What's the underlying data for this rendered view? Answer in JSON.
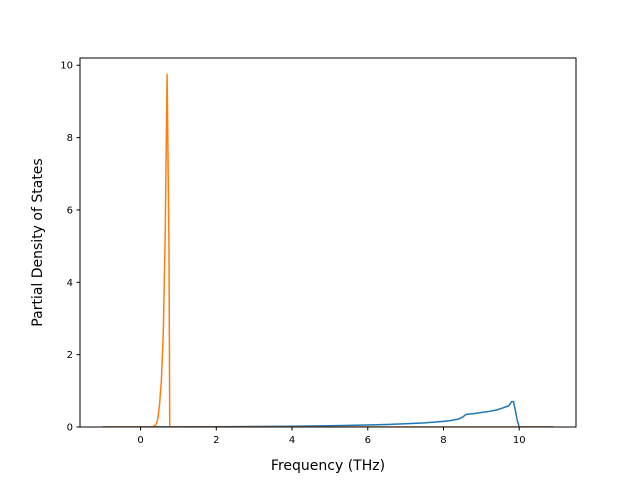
{
  "chart_data": {
    "type": "line",
    "xlabel": "Frequency (THz)",
    "ylabel": "Partial Density of States",
    "xlim": [
      -1.6,
      11.5
    ],
    "ylim": [
      0,
      10.2
    ],
    "x_ticks": [
      0,
      2,
      4,
      6,
      8,
      10
    ],
    "y_ticks": [
      0,
      2,
      4,
      6,
      8,
      10
    ],
    "x_tick_labels": [
      "0",
      "2",
      "4",
      "6",
      "8",
      "10"
    ],
    "y_tick_labels": [
      "0",
      "2",
      "4",
      "6",
      "8",
      "10"
    ],
    "grid": false,
    "series": [
      {
        "color": "#1f77b4",
        "x": [
          -1.0,
          0.0,
          1.0,
          2.0,
          3.0,
          4.0,
          5.0,
          6.0,
          6.5,
          7.0,
          7.5,
          8.0,
          8.2,
          8.4,
          8.5,
          8.6,
          8.8,
          9.0,
          9.2,
          9.4,
          9.55,
          9.65,
          9.72,
          9.8,
          9.85,
          9.9,
          9.95,
          10.0,
          10.9
        ],
        "y": [
          0.0,
          0.0,
          0.003,
          0.008,
          0.015,
          0.022,
          0.035,
          0.055,
          0.07,
          0.09,
          0.115,
          0.155,
          0.18,
          0.22,
          0.27,
          0.35,
          0.37,
          0.4,
          0.43,
          0.47,
          0.52,
          0.56,
          0.58,
          0.7,
          0.7,
          0.45,
          0.18,
          0.0,
          0.0
        ]
      },
      {
        "color": "#ff7f0e",
        "x": [
          -1.0,
          0.3,
          0.4,
          0.45,
          0.5,
          0.55,
          0.6,
          0.65,
          0.7,
          0.75,
          0.77,
          0.8,
          10.9
        ],
        "y": [
          0.0,
          0.0,
          0.05,
          0.2,
          0.6,
          1.3,
          2.6,
          5.3,
          9.75,
          5.0,
          0.0,
          0.0,
          0.0
        ]
      }
    ]
  }
}
